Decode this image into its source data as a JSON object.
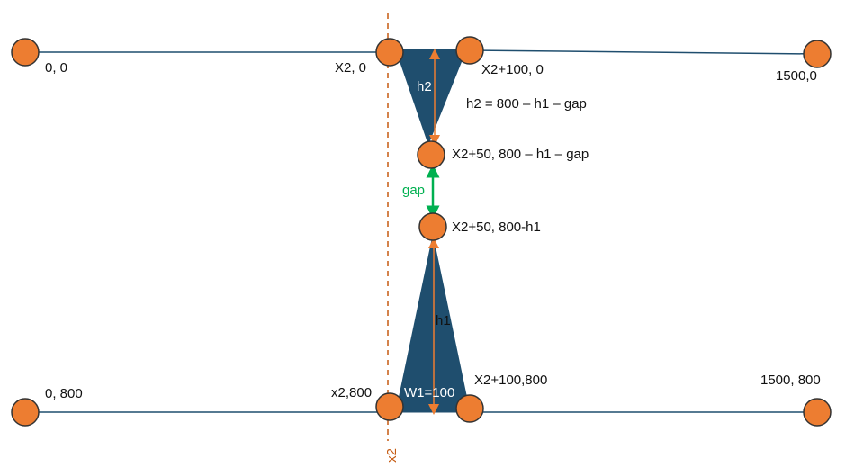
{
  "nodes": [
    {
      "label": "0, 0"
    },
    {
      "label": "X2, 0"
    },
    {
      "label": "X2+100, 0"
    },
    {
      "label": "1500,0"
    },
    {
      "label": "X2+50, 800 – h1 – gap"
    },
    {
      "label": "X2+50, 800-h1"
    },
    {
      "label": "0, 800"
    },
    {
      "label": "x2,800"
    },
    {
      "label": "X2+100,800"
    },
    {
      "label": "1500, 800"
    }
  ],
  "annotations": {
    "h2": "h2",
    "h2_formula": "h2 = 800 – h1 – gap",
    "gap": "gap",
    "h1": "h1",
    "w1": "W1=100",
    "x2_line": "x2"
  }
}
